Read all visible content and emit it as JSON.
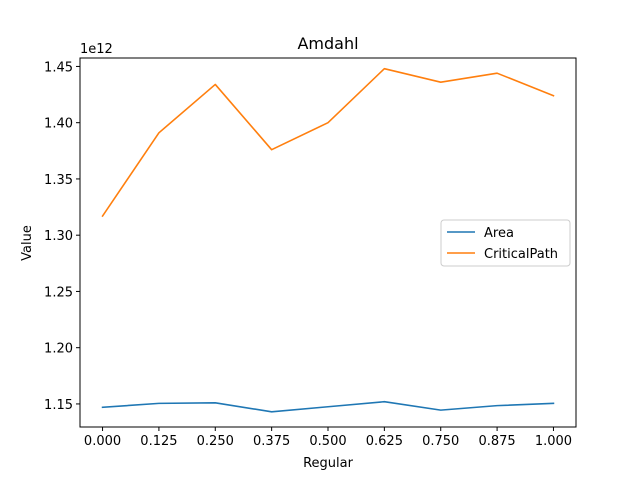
{
  "chart_data": {
    "type": "line",
    "title": "Amdahl",
    "xlabel": "Regular",
    "ylabel": "Value",
    "y_offset_label": "1e12",
    "x": [
      0.0,
      0.125,
      0.25,
      0.375,
      0.5,
      0.625,
      0.75,
      0.875,
      1.0
    ],
    "xticks": [
      "0.000",
      "0.125",
      "0.250",
      "0.375",
      "0.500",
      "0.625",
      "0.750",
      "0.875",
      "1.000"
    ],
    "xlim": [
      -0.05,
      1.05
    ],
    "ylim": [
      1.1295,
      1.4575
    ],
    "yticks": [
      1.15,
      1.2,
      1.25,
      1.3,
      1.35,
      1.4,
      1.45
    ],
    "ytick_labels": [
      "1.15",
      "1.20",
      "1.25",
      "1.30",
      "1.35",
      "1.40",
      "1.45"
    ],
    "grid": false,
    "legend_position": "center-right",
    "series": [
      {
        "name": "Area",
        "color": "#1f77b4",
        "values": [
          1.147,
          1.1505,
          1.151,
          1.143,
          1.1475,
          1.152,
          1.1445,
          1.1485,
          1.1505
        ]
      },
      {
        "name": "CriticalPath",
        "color": "#ff7f0e",
        "values": [
          1.317,
          1.391,
          1.434,
          1.376,
          1.4,
          1.448,
          1.436,
          1.444,
          1.424
        ]
      }
    ]
  }
}
